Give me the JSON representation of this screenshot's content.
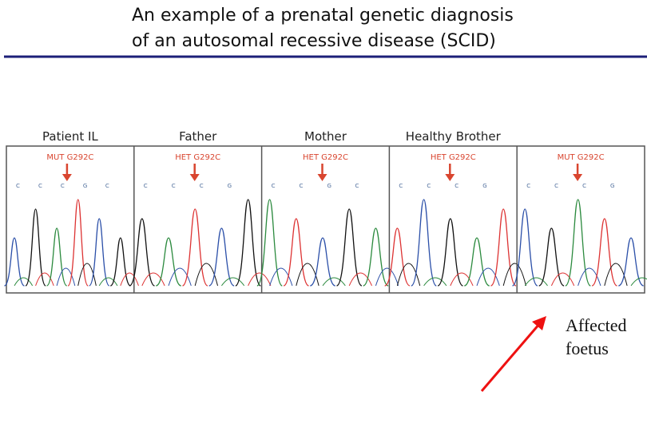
{
  "title": {
    "lines": [
      "An example of a prenatal genetic diagnosis",
      "of an autosomal recessive disease (SCID)"
    ]
  },
  "panels": [
    {
      "header": "Patient IL",
      "label": "MUT G292C",
      "bases": [
        "C",
        "C",
        "C",
        "G",
        "C"
      ]
    },
    {
      "header": "Father",
      "label": "HET G292C",
      "bases": [
        "C",
        "C",
        "C",
        "G"
      ]
    },
    {
      "header": "Mother",
      "label": "HET G292C",
      "bases": [
        "C",
        "C",
        "G",
        "C"
      ]
    },
    {
      "header": "Healthy Brother",
      "label": "HET G292C",
      "bases": [
        "C",
        "C",
        "C",
        "G"
      ]
    },
    {
      "label": "MUT G292C",
      "bases": [
        "C",
        "C",
        "C",
        "G"
      ]
    }
  ],
  "annotation": {
    "lines": [
      "Affected",
      "foetus"
    ]
  }
}
